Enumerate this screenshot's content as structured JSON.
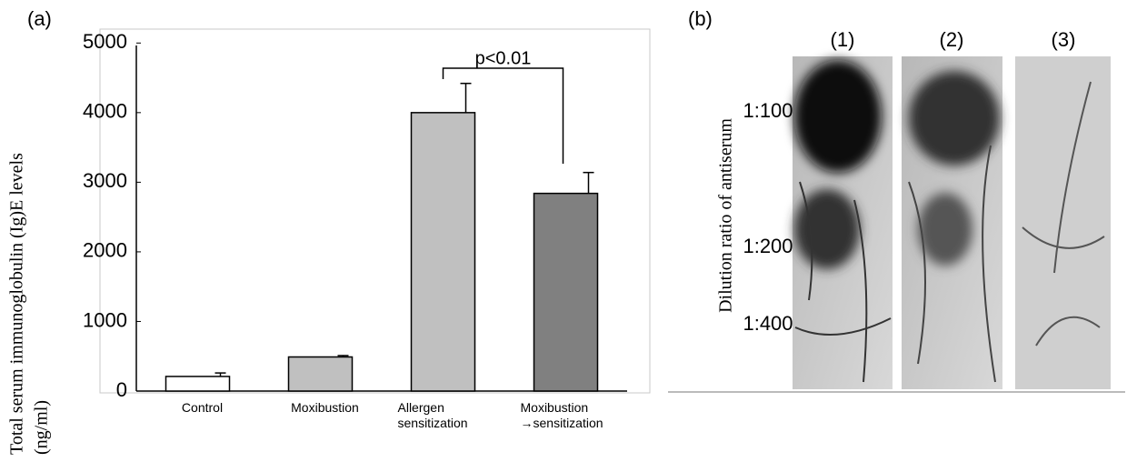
{
  "chart_data": {
    "type": "bar",
    "panel_label": "(a)",
    "y_label": "Total serum immunoglobulin (Ig)E levels",
    "y_unit": "(ng/ml)",
    "categories": [
      "Control",
      "Moxibustion",
      "Allergen sensitization",
      "Moxibustion →sensitization"
    ],
    "values": [
      210,
      490,
      4000,
      2840
    ],
    "errors": [
      50,
      20,
      420,
      300
    ],
    "colors": [
      "#ffffff",
      "#c0c0c0",
      "#c0c0c0",
      "#808080"
    ],
    "ylim": [
      0,
      5200
    ],
    "yticks": [
      0,
      1000,
      2000,
      3000,
      4000,
      5000
    ],
    "grid": false,
    "annotation": "p<0.01"
  },
  "panel_b": {
    "label": "(b)",
    "columns": [
      "(1)",
      "(2)",
      "(3)"
    ],
    "row_axis_label": "Dilution ratio of antiserum",
    "rows": [
      "1:100",
      "1:200",
      "1:400"
    ]
  }
}
